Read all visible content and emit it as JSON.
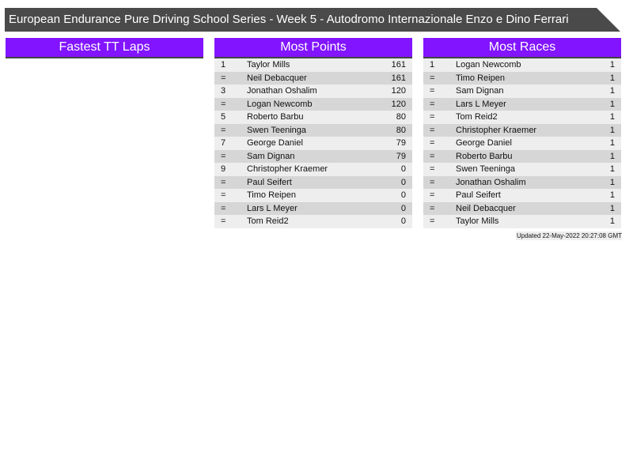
{
  "title": "European Endurance Pure Driving School Series - Week 5 - Autodromo Internazionale Enzo e Dino Ferrari",
  "panels": [
    {
      "heading": "Fastest TT Laps",
      "rows": []
    },
    {
      "heading": "Most Points",
      "rows": [
        [
          "1",
          "Taylor Mills",
          "161"
        ],
        [
          "=",
          "Neil Debacquer",
          "161"
        ],
        [
          "3",
          "Jonathan Oshalim",
          "120"
        ],
        [
          "=",
          "Logan Newcomb",
          "120"
        ],
        [
          "5",
          "Roberto Barbu",
          "80"
        ],
        [
          "=",
          "Swen Teeninga",
          "80"
        ],
        [
          "7",
          "George Daniel",
          "79"
        ],
        [
          "=",
          "Sam Dignan",
          "79"
        ],
        [
          "9",
          "Christopher Kraemer",
          "0"
        ],
        [
          "=",
          "Paul Seifert",
          "0"
        ],
        [
          "=",
          "Timo Reipen",
          "0"
        ],
        [
          "=",
          "Lars L Meyer",
          "0"
        ],
        [
          "=",
          "Tom Reid2",
          "0"
        ]
      ]
    },
    {
      "heading": "Most Races",
      "rows": [
        [
          "1",
          "Logan Newcomb",
          "1"
        ],
        [
          "=",
          "Timo Reipen",
          "1"
        ],
        [
          "=",
          "Sam Dignan",
          "1"
        ],
        [
          "=",
          "Lars L Meyer",
          "1"
        ],
        [
          "=",
          "Tom Reid2",
          "1"
        ],
        [
          "=",
          "Christopher Kraemer",
          "1"
        ],
        [
          "=",
          "George Daniel",
          "1"
        ],
        [
          "=",
          "Roberto Barbu",
          "1"
        ],
        [
          "=",
          "Swen Teeninga",
          "1"
        ],
        [
          "=",
          "Jonathan Oshalim",
          "1"
        ],
        [
          "=",
          "Paul Seifert",
          "1"
        ],
        [
          "=",
          "Neil Debacquer",
          "1"
        ],
        [
          "=",
          "Taylor Mills",
          "1"
        ]
      ]
    }
  ],
  "updated": "Updated 22-May-2022 20:27:08 GMT",
  "colors": {
    "header": "#8214ff",
    "title_bar": "#4a4a4a"
  }
}
